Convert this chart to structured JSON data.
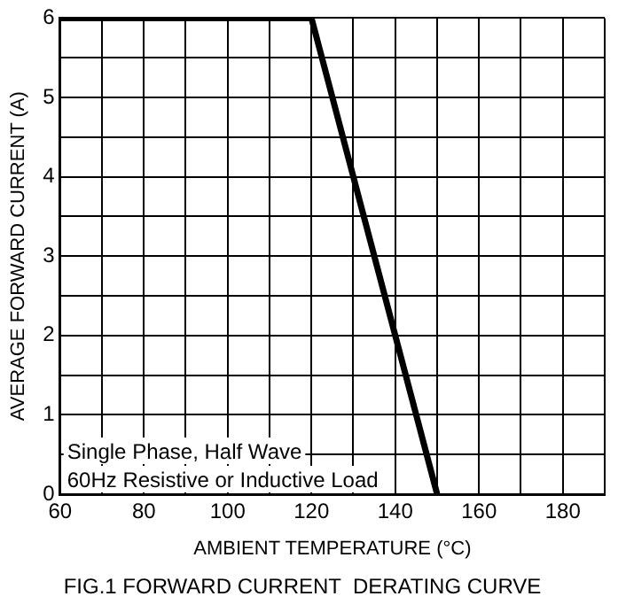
{
  "chart_data": {
    "type": "line",
    "title": "FIG.1 FORWARD CURRENT  DERATING CURVE",
    "xlabel": "AMBIENT TEMPERATURE (°C)",
    "ylabel": "AVERAGE FORWARD CURRENT (A)",
    "x": [
      60,
      120,
      150
    ],
    "series": [
      {
        "color": "#000000",
        "values": [
          6,
          6,
          0
        ]
      }
    ],
    "xlim": [
      60,
      190
    ],
    "xticks": [
      60,
      {
        "value": 70,
        "label": null
      },
      80,
      {
        "value": 90,
        "label": null
      },
      100,
      {
        "value": 110,
        "label": null
      },
      120,
      {
        "value": 130,
        "label": null
      },
      140,
      {
        "value": 150,
        "label": null
      },
      160,
      {
        "value": 170,
        "label": null
      },
      180,
      {
        "value": 190,
        "label": null
      }
    ],
    "ylim": [
      0,
      6
    ],
    "yticks": [
      0,
      {
        "value": 0.5,
        "label": null
      },
      1,
      {
        "value": 1.5,
        "label": null
      },
      2,
      {
        "value": 2.5,
        "label": null
      },
      3,
      {
        "value": 3.5,
        "label": null
      },
      4,
      {
        "value": 4.5,
        "label": null
      },
      5,
      {
        "value": 5.5,
        "label": null
      },
      6
    ],
    "grid": true,
    "legend": false,
    "marker": "none",
    "line_style": "solid",
    "annotations": [
      "Single Phase, Half Wave",
      "60Hz Resistive or Inductive Load"
    ]
  }
}
